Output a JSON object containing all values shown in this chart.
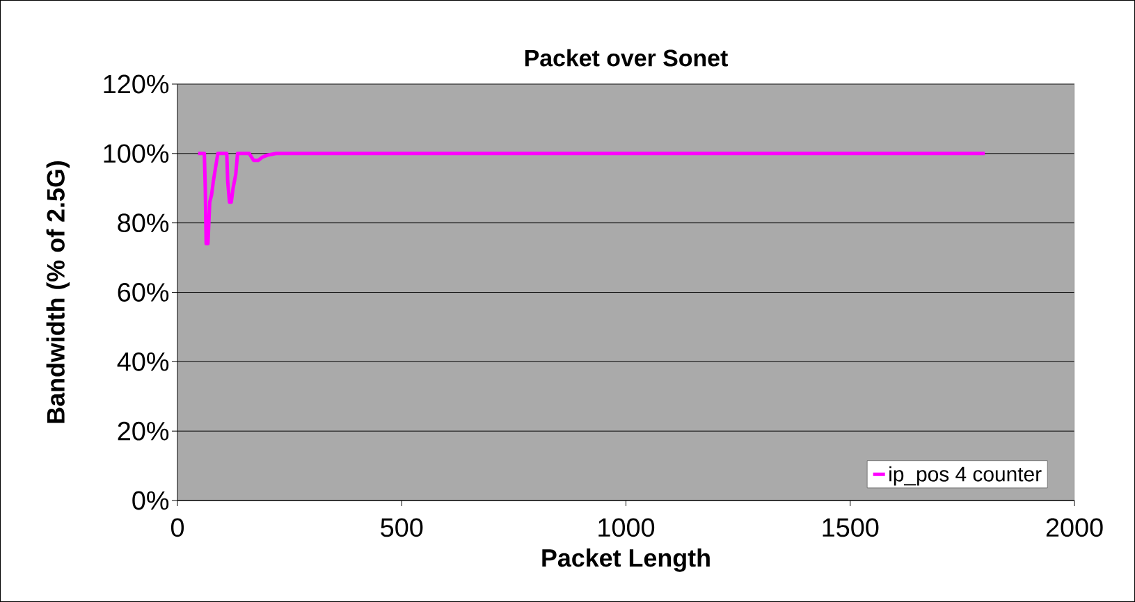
{
  "chart_data": {
    "type": "line",
    "title": "Packet over Sonet",
    "xlabel": "Packet Length",
    "ylabel": "Bandwidth (% of 2.5G)",
    "series": [
      {
        "name": "ip_pos 4 counter",
        "color": "#ff00ff",
        "x": [
          46,
          60,
          62,
          64,
          68,
          70,
          72,
          76,
          80,
          85,
          90,
          110,
          112,
          116,
          120,
          124,
          130,
          134,
          160,
          170,
          180,
          190,
          200,
          220,
          1800
        ],
        "values": [
          100,
          100,
          90,
          74,
          74,
          80,
          86,
          88,
          92,
          96,
          100,
          100,
          92,
          86,
          86,
          90,
          94,
          100,
          100,
          98,
          98,
          99,
          99.5,
          100,
          100
        ]
      }
    ],
    "xlim": [
      0,
      2000
    ],
    "xticks": [
      0,
      500,
      1000,
      1500,
      2000
    ],
    "ylim": [
      0,
      120
    ],
    "yticks": [
      {
        "value": 0,
        "label": "0%"
      },
      {
        "value": 20,
        "label": "20%"
      },
      {
        "value": 40,
        "label": "40%"
      },
      {
        "value": 60,
        "label": "60%"
      },
      {
        "value": 80,
        "label": "80%"
      },
      {
        "value": 100,
        "label": "100%"
      },
      {
        "value": 120,
        "label": "120%"
      }
    ],
    "grid": "y",
    "legend": "bottom right",
    "marker": "none",
    "line_style": "solid"
  }
}
